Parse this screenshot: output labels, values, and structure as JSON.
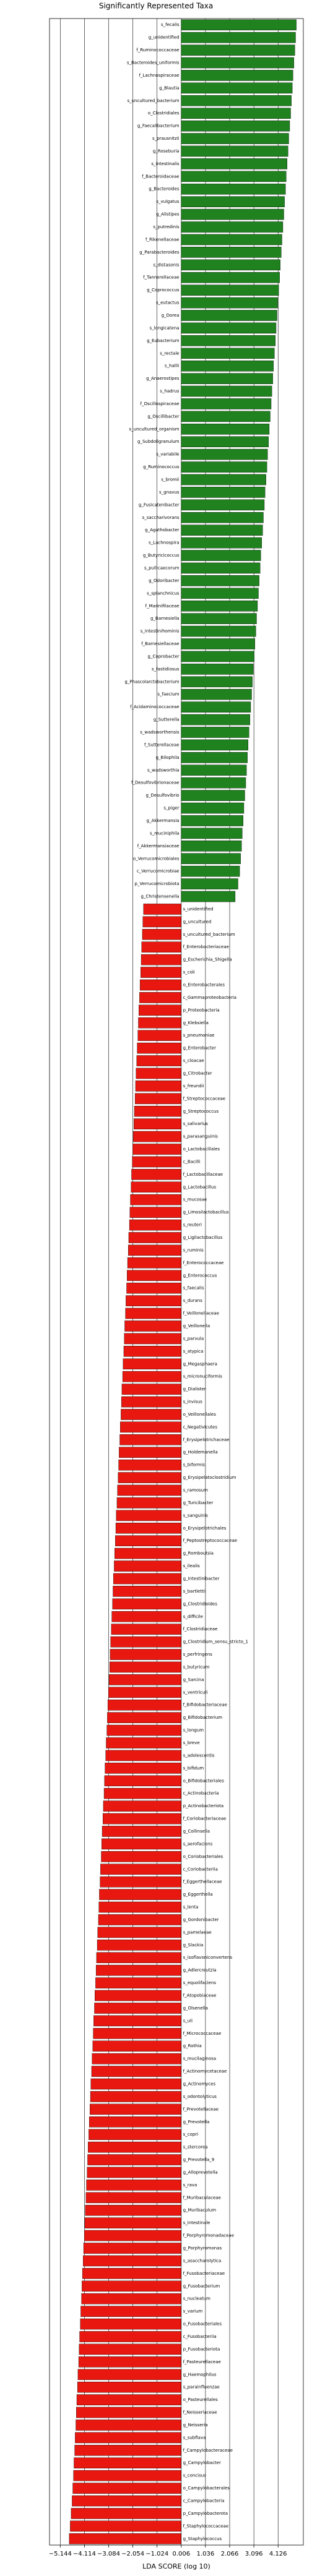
{
  "chart_data": {
    "type": "diverging-bar",
    "title": "Significantly Represented Taxa",
    "xlabel": "LDA SCORE (log 10)",
    "categories": [
      "s_fecalis",
      "g_unidentified",
      "f_Ruminococcaceae",
      "s_Bacteroides_uniformis",
      "f_Lachnospiraceae",
      "g_Blautia",
      "s_uncultured_bacterium",
      "o_Clostridiales",
      "g_Faecalibacterium",
      "s_prausnitzii",
      "g_Roseburia",
      "s_intestinalis",
      "f_Bacteroidaceae",
      "g_Bacteroides",
      "s_vulgatus",
      "g_Alistipes",
      "s_putredinis",
      "f_Rikenellaceae",
      "g_Parabacteroides",
      "s_distasonis",
      "f_Tannerellaceae",
      "g_Coprococcus",
      "s_eutactus",
      "g_Dorea",
      "s_longicatena",
      "g_Eubacterium",
      "s_rectale",
      "s_hallii",
      "g_Anaerostipes",
      "s_hadrus",
      "f_Oscillospiraceae",
      "g_Oscillibacter",
      "s_uncultured_organism",
      "g_Subdoligranulum",
      "s_variabile",
      "g_Ruminococcus",
      "s_bromii",
      "s_gnavus",
      "g_Fusicatenibacter",
      "s_saccharivorans",
      "g_Agathobacter",
      "s_Lachnospira",
      "g_Butyricicoccus",
      "s_pullicaecorum",
      "g_Odoribacter",
      "s_splanchnicus",
      "f_Marinifilaceae",
      "g_Barnesiella",
      "s_intestinihominis",
      "f_Barnesiellaceae",
      "g_Coprobacter",
      "s_fastidiosus",
      "g_Phascolarctobacterium",
      "s_faecium",
      "f_Acidaminococcaceae",
      "g_Sutterella",
      "s_wadsworthensis",
      "f_Sutterellaceae",
      "g_Bilophila",
      "s_wadsworthia",
      "f_Desulfovibrionaceae",
      "g_Desulfovibrio",
      "s_piger",
      "g_Akkermansia",
      "s_muciniphila",
      "f_Akkermansiaceae",
      "o_Verrucomicrobiales",
      "c_Verrucomicrobiae",
      "p_Verrucomicrobiota",
      "g_Christensenella",
      "s_unidentified",
      "g_uncultured",
      "s_uncultured_bacterium",
      "f_Enterobacteriaceae",
      "g_Escherichia_Shigella",
      "s_coli",
      "o_Enterobacterales",
      "c_Gammaproteobacteria",
      "p_Proteobacteria",
      "g_Klebsiella",
      "s_pneumoniae",
      "g_Enterobacter",
      "s_cloacae",
      "g_Citrobacter",
      "s_freundii",
      "f_Streptococcaceae",
      "g_Streptococcus",
      "s_salivarius",
      "s_parasanguinis",
      "o_Lactobacillales",
      "c_Bacilli",
      "f_Lactobacillaceae",
      "g_Lactobacillus",
      "s_mucosae",
      "g_Limosilactobacillus",
      "s_reuteri",
      "g_Ligilactobacillus",
      "s_ruminis",
      "f_Enterococcaceae",
      "g_Enterococcus",
      "s_faecalis",
      "s_durans",
      "f_Veillonellaceae",
      "g_Veillonella",
      "s_parvula",
      "s_atypica",
      "g_Megasphaera",
      "s_micronuciformis",
      "g_Dialister",
      "s_invisus",
      "o_Veillonellales",
      "c_Negativicutes",
      "f_Erysipelotrichaceae",
      "g_Holdemanella",
      "s_biformis",
      "g_Erysipelatoclostridium",
      "s_ramosum",
      "g_Turicibacter",
      "s_sanguinis",
      "o_Erysipelotrichales",
      "f_Peptostreptococcaceae",
      "g_Romboutsia",
      "s_ilealis",
      "g_Intestinibacter",
      "s_bartlettii",
      "g_Clostridioides",
      "s_difficile",
      "f_Clostridiaceae",
      "g_Clostridium_sensu_stricto_1",
      "s_perfringens",
      "s_butyricum",
      "g_Sarcina",
      "s_ventriculi",
      "f_Bifidobacteriaceae",
      "g_Bifidobacterium",
      "s_longum",
      "s_breve",
      "s_adolescentis",
      "s_bifidum",
      "o_Bifidobacteriales",
      "c_Actinobacteria",
      "p_Actinobacteriota",
      "f_Coriobacteriaceae",
      "g_Collinsella",
      "s_aerofaciens",
      "o_Coriobacteriales",
      "c_Coriobacteriia",
      "f_Eggerthellaceae",
      "g_Eggerthella",
      "s_lenta",
      "g_Gordonibacter",
      "s_pamelaeae",
      "g_Slackia",
      "s_isoflavoniconvertens",
      "g_Adlercreutzia",
      "s_equolifaciens",
      "f_Atopobiaceae",
      "g_Olsenella",
      "s_uli",
      "f_Micrococcaceae",
      "g_Rothia",
      "s_mucilaginosa",
      "f_Actinomycetaceae",
      "g_Actinomyces",
      "s_odontolyticus",
      "f_Prevotellaceae",
      "g_Prevotella",
      "s_copri",
      "s_stercorea",
      "g_Prevotella_9",
      "g_Alloprevotella",
      "s_rava",
      "f_Muribaculaceae",
      "g_Muribaculum",
      "s_intestinale",
      "f_Porphyromonadaceae",
      "g_Porphyromonas",
      "s_asaccharolytica",
      "f_Fusobacteriaceae",
      "g_Fusobacterium",
      "s_nucleatum",
      "s_varium",
      "o_Fusobacteriales",
      "c_Fusobacteriia",
      "p_Fusobacteriota",
      "f_Pasteurellaceae",
      "g_Haemophilus",
      "s_parainfluenzae",
      "o_Pasteurellales",
      "f_Neisseriaceae",
      "g_Neisseria",
      "s_subflava",
      "f_Campylobacteraceae",
      "g_Campylobacter",
      "s_concisus",
      "o_Campylobacterales",
      "c_Campylobacteria",
      "p_Campylobacterota",
      "f_Staphylococcaceae",
      "g_Staphylococcus"
    ],
    "values": [
      4.9,
      4.87,
      4.84,
      4.8,
      4.76,
      4.73,
      4.69,
      4.66,
      4.62,
      4.58,
      4.55,
      4.51,
      4.47,
      4.44,
      4.4,
      4.37,
      4.33,
      4.29,
      4.26,
      4.22,
      4.19,
      4.15,
      4.11,
      4.08,
      4.04,
      4.01,
      3.97,
      3.93,
      3.9,
      3.86,
      3.83,
      3.79,
      3.75,
      3.72,
      3.68,
      3.65,
      3.61,
      3.57,
      3.54,
      3.5,
      3.47,
      3.43,
      3.39,
      3.36,
      3.32,
      3.29,
      3.25,
      3.21,
      3.18,
      3.14,
      3.11,
      3.07,
      3.03,
      3.0,
      2.96,
      2.93,
      2.89,
      2.85,
      2.82,
      2.78,
      2.75,
      2.71,
      2.67,
      2.64,
      2.6,
      2.57,
      2.53,
      2.49,
      2.42,
      2.3,
      -1.6,
      -1.63,
      -1.65,
      -1.68,
      -1.7,
      -1.72,
      -1.75,
      -1.77,
      -1.8,
      -1.82,
      -1.84,
      -1.87,
      -1.89,
      -1.92,
      -1.94,
      -1.96,
      -1.99,
      -2.01,
      -2.04,
      -2.06,
      -2.08,
      -2.11,
      -2.13,
      -2.16,
      -2.18,
      -2.2,
      -2.23,
      -2.25,
      -2.28,
      -2.3,
      -2.32,
      -2.35,
      -2.37,
      -2.4,
      -2.42,
      -2.44,
      -2.47,
      -2.49,
      -2.52,
      -2.54,
      -2.56,
      -2.59,
      -2.61,
      -2.64,
      -2.66,
      -2.68,
      -2.71,
      -2.73,
      -2.76,
      -2.78,
      -2.8,
      -2.83,
      -2.85,
      -2.88,
      -2.9,
      -2.92,
      -2.95,
      -2.97,
      -3.0,
      -3.02,
      -3.04,
      -3.07,
      -3.09,
      -3.12,
      -3.14,
      -3.16,
      -3.19,
      -3.21,
      -3.24,
      -3.26,
      -3.28,
      -3.31,
      -3.33,
      -3.36,
      -3.38,
      -3.4,
      -3.43,
      -3.45,
      -3.48,
      -3.5,
      -3.52,
      -3.55,
      -3.57,
      -3.6,
      -3.62,
      -3.64,
      -3.67,
      -3.69,
      -3.72,
      -3.74,
      -3.76,
      -3.79,
      -3.81,
      -3.84,
      -3.86,
      -3.88,
      -3.91,
      -3.93,
      -3.96,
      -3.98,
      -4.0,
      -4.03,
      -4.05,
      -4.08,
      -4.1,
      -4.12,
      -4.15,
      -4.17,
      -4.2,
      -4.22,
      -4.24,
      -4.27,
      -4.29,
      -4.32,
      -4.34,
      -4.36,
      -4.39,
      -4.41,
      -4.44,
      -4.46,
      -4.48,
      -4.51,
      -4.53,
      -4.56,
      -4.58,
      -4.61,
      -4.64,
      -4.68,
      -4.72,
      -4.76
    ],
    "color_positive": "#1f821f",
    "color_negative": "#e8170f",
    "xlim": [
      -5.6,
      5.2
    ],
    "xticks": [
      {
        "value": -5.144,
        "label": "−5.144"
      },
      {
        "value": -4.114,
        "label": "−4.114"
      },
      {
        "value": -3.084,
        "label": "−3.084"
      },
      {
        "value": -2.054,
        "label": "−2.054"
      },
      {
        "value": -1.024,
        "label": "−1.024"
      },
      0.006,
      1.036,
      2.066,
      3.096,
      4.126
    ],
    "grid": true
  }
}
